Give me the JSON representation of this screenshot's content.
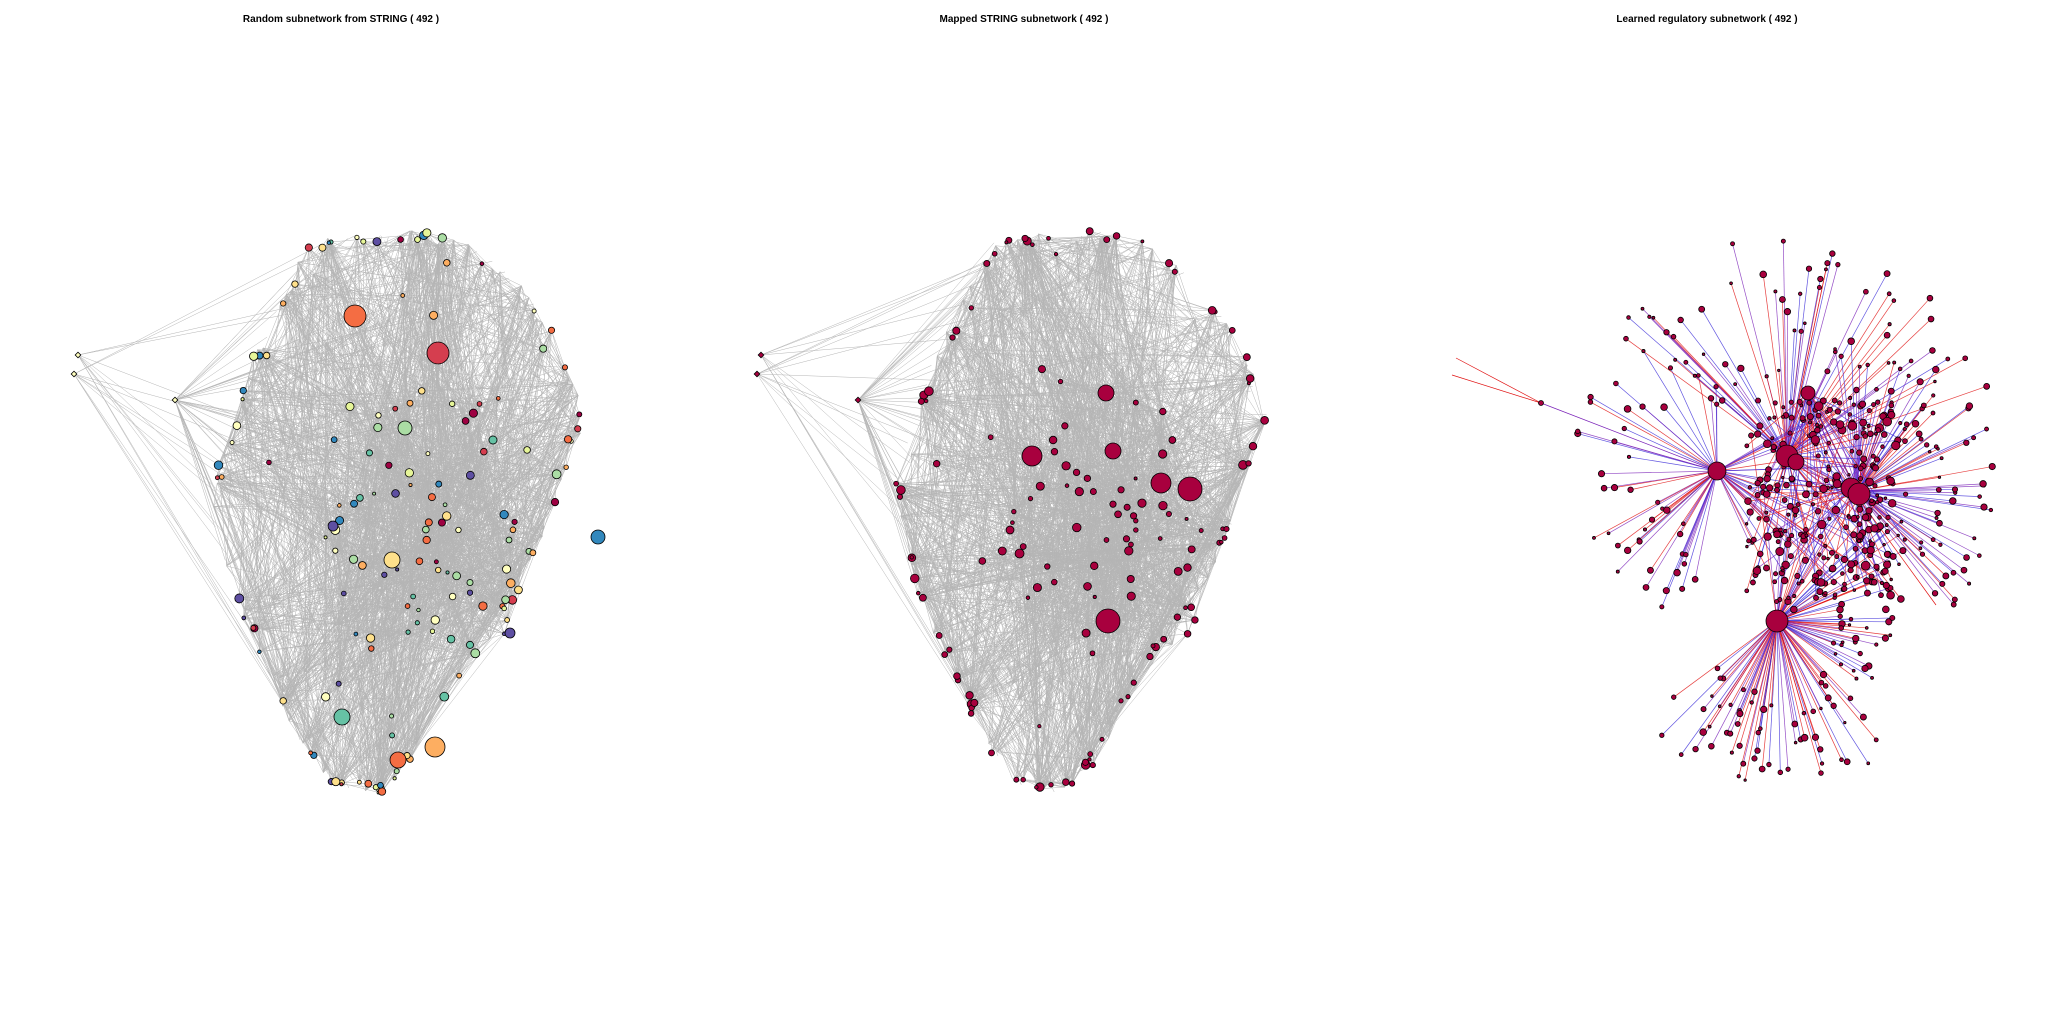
{
  "figure": {
    "panels": [
      {
        "id": "random",
        "title": "Random subnetwork from STRING ( 492 )",
        "edge_color": "#a9a9a9",
        "edge_style": "gray",
        "node_palette": [
          "#9e0142",
          "#d53e4f",
          "#f46d43",
          "#fdae61",
          "#fee08b",
          "#ffffbf",
          "#e6f598",
          "#abdda4",
          "#66c2a5",
          "#3288bd",
          "#5e4fa2"
        ]
      },
      {
        "id": "mapped",
        "title": "Mapped STRING subnetwork ( 492 )",
        "edge_color": "#a9a9a9",
        "edge_style": "gray",
        "node_palette": [
          "#a8003e"
        ]
      },
      {
        "id": "learned",
        "title": "Learned regulatory subnetwork ( 492 )",
        "edge_color": "#2b2bd8",
        "edge_style": "red-blue",
        "node_palette": [
          "#a8003e"
        ]
      }
    ]
  }
}
